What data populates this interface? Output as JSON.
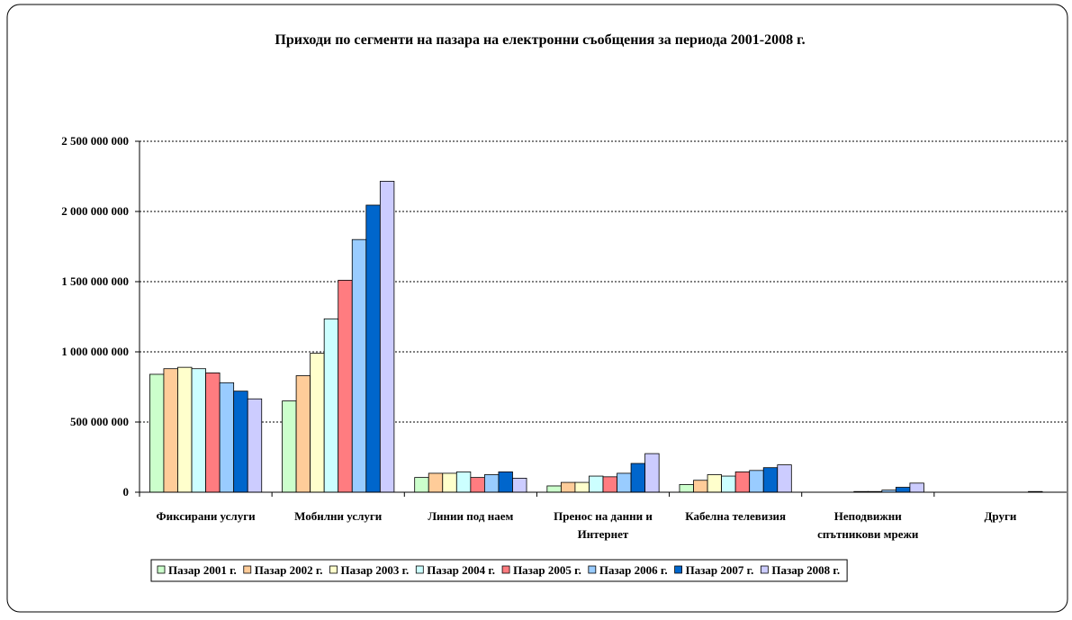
{
  "chart_data": {
    "type": "bar",
    "title": "Приходи по сегменти на пазара на електронни съобщения за периода 2001-2008 г.",
    "categories": [
      "Фиксирани услуги",
      "Мобилни услуги",
      "Линии под наем",
      "Пренос на данни и Интернет",
      "Кабелна телевизия",
      "Неподвижни спътникови мрежи",
      "Други"
    ],
    "series": [
      {
        "name": "Пазар 2001 г.",
        "color": "#ccffcc",
        "values": [
          840000000,
          650000000,
          105000000,
          45000000,
          55000000,
          0,
          0
        ]
      },
      {
        "name": "Пазар 2002 г.",
        "color": "#ffcc99",
        "values": [
          880000000,
          830000000,
          135000000,
          70000000,
          85000000,
          0,
          0
        ]
      },
      {
        "name": "Пазар 2003 г.",
        "color": "#ffffcc",
        "values": [
          890000000,
          990000000,
          135000000,
          70000000,
          125000000,
          0,
          0
        ]
      },
      {
        "name": "Пазар 2004 г.",
        "color": "#ccffff",
        "values": [
          880000000,
          1235000000,
          145000000,
          115000000,
          115000000,
          5000000,
          0
        ]
      },
      {
        "name": "Пазар 2005 г.",
        "color": "#ff7c80",
        "values": [
          850000000,
          1510000000,
          105000000,
          110000000,
          145000000,
          5000000,
          0
        ]
      },
      {
        "name": "Пазар 2006 г.",
        "color": "#99ccff",
        "values": [
          780000000,
          1800000000,
          125000000,
          135000000,
          155000000,
          15000000,
          0
        ]
      },
      {
        "name": "Пазар 2007 г.",
        "color": "#0066cc",
        "values": [
          720000000,
          2045000000,
          145000000,
          205000000,
          175000000,
          35000000,
          5000000
        ]
      },
      {
        "name": "Пазар 2008 г.",
        "color": "#ccccff",
        "values": [
          665000000,
          2215000000,
          100000000,
          275000000,
          195000000,
          65000000,
          0
        ]
      }
    ],
    "ylim": [
      0,
      2500000000
    ],
    "yticks": [
      0,
      {
        "value": 500000000,
        "label": "500 000 000"
      },
      {
        "value": 1000000000,
        "label": "1 000 000 000"
      },
      {
        "value": 1500000000,
        "label": "1 500 000 000"
      },
      {
        "value": 2000000000,
        "label": "2 000 000 000"
      },
      {
        "value": 2500000000,
        "label": "2 500 000 000"
      }
    ],
    "grid": true,
    "legend": "bottom"
  }
}
